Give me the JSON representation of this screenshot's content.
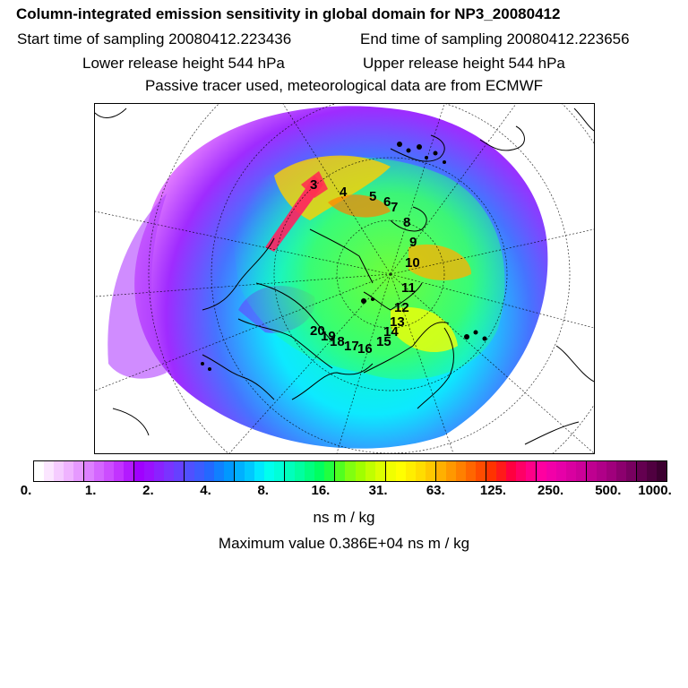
{
  "header": {
    "title": "Column-integrated emission sensitivity in global domain for NP3_20080412",
    "start_time": "Start time of sampling 20080412.223436",
    "end_time": "End time of sampling 20080412.223656",
    "lower_height": "Lower release height  544 hPa",
    "upper_height": "Upper release height  544 hPa",
    "note": "Passive tracer used, meteorological data are from ECMWF"
  },
  "trajectory_labels": [
    "3",
    "4",
    "5",
    "6",
    "7",
    "8",
    "9",
    "10",
    "11",
    "12",
    "13",
    "14",
    "15",
    "16",
    "17",
    "18",
    "19",
    "20"
  ],
  "colorbar": {
    "colors": [
      "#ffffff",
      "#fbe6ff",
      "#f5ccff",
      "#efb3ff",
      "#e699ff",
      "#dd80ff",
      "#d466ff",
      "#cc4dff",
      "#c233ff",
      "#b31aff",
      "#a000ff",
      "#9a10ff",
      "#8a22ff",
      "#7a33ff",
      "#6640ff",
      "#5050ff",
      "#3c5cff",
      "#2468ff",
      "#1080ff",
      "#0098ff",
      "#00b0ff",
      "#00c8ff",
      "#00e8ff",
      "#00ffee",
      "#00ffd8",
      "#00ffbc",
      "#00ffa0",
      "#00ff80",
      "#00ff60",
      "#20ff40",
      "#50ff20",
      "#80ff10",
      "#a0ff00",
      "#c0ff00",
      "#dcff00",
      "#f0ff00",
      "#ffff00",
      "#ffee00",
      "#ffdd00",
      "#ffc800",
      "#ffb000",
      "#ff9800",
      "#ff8000",
      "#ff6600",
      "#ff4c00",
      "#ff3300",
      "#ff1a1a",
      "#ff0040",
      "#ff0066",
      "#ff0088",
      "#ff00a0",
      "#f200a8",
      "#e600a8",
      "#d900a0",
      "#cc0099",
      "#bf0090",
      "#b00088",
      "#a0007c",
      "#8c006e",
      "#780060",
      "#640050",
      "#500040",
      "#3c0030"
    ],
    "labels": [
      "0.",
      "1.",
      "2.",
      "4.",
      "8.",
      "16.",
      "31.",
      "63.",
      "125.",
      "250.",
      "500.",
      "1000."
    ]
  },
  "unit": "ns m / kg",
  "max_value": "Maximum value  0.386E+04 ns m / kg"
}
